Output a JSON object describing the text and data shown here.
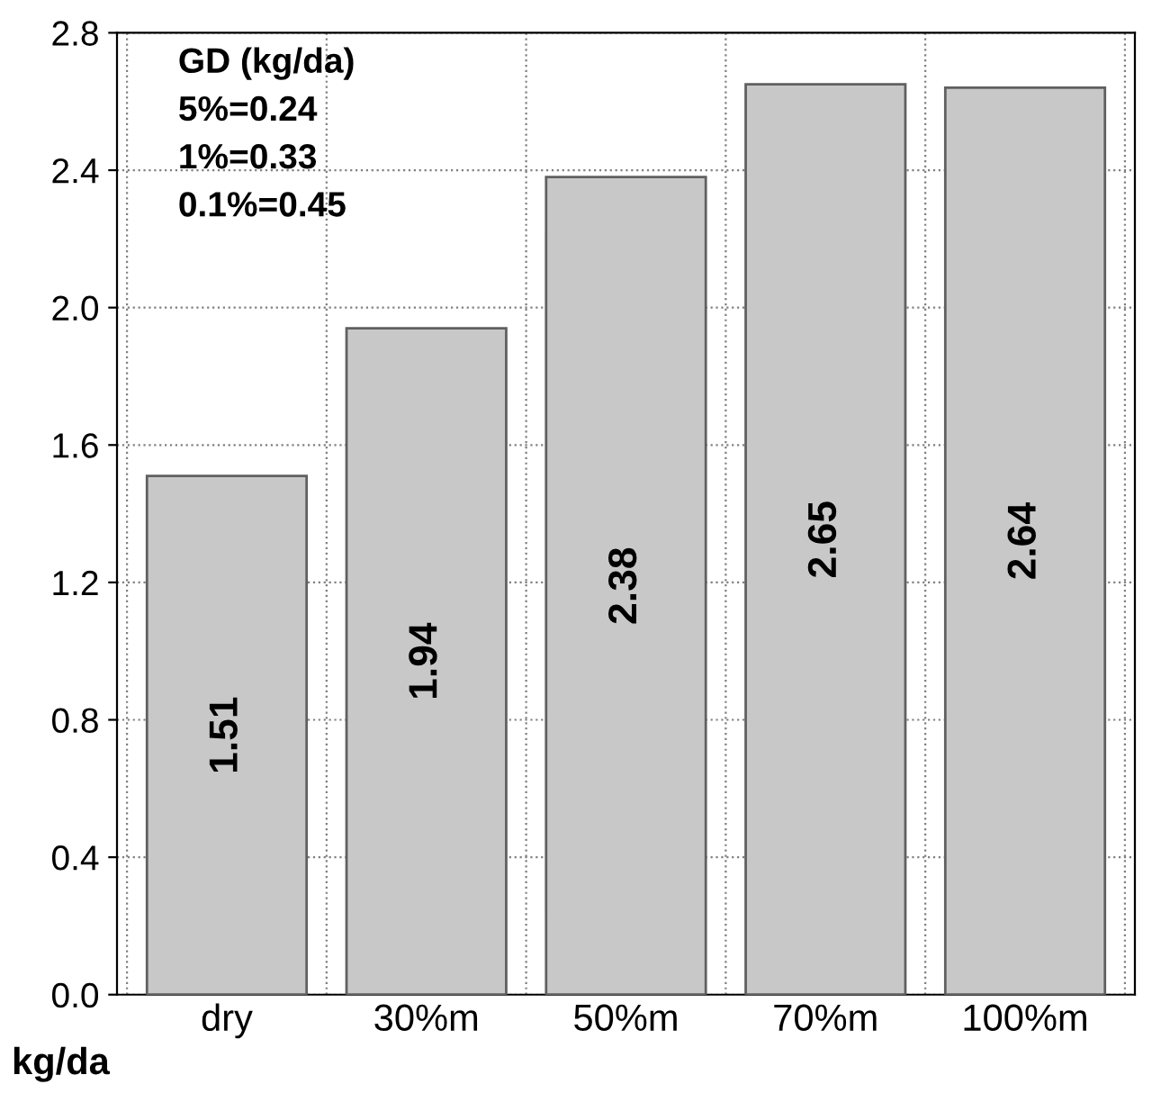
{
  "chart_data": {
    "type": "bar",
    "categories": [
      "dry",
      "30%m",
      "50%m",
      "70%m",
      "100%m"
    ],
    "values": [
      1.51,
      1.94,
      2.38,
      2.65,
      2.64
    ],
    "color": "#c8c8c8",
    "ylabel": "kg/da",
    "ylim": [
      0,
      2.8
    ],
    "yticks": [
      {
        "value": 0,
        "label": "0.0"
      },
      0.4,
      0.8,
      1.2,
      1.6,
      {
        "value": 2,
        "label": "2.0"
      },
      2.4,
      2.8
    ],
    "grid": true,
    "data_labels": true,
    "annotations": [
      "GD (kg/da)",
      "5%=0.24",
      "1%=0.33",
      "0.1%=0.45"
    ]
  }
}
